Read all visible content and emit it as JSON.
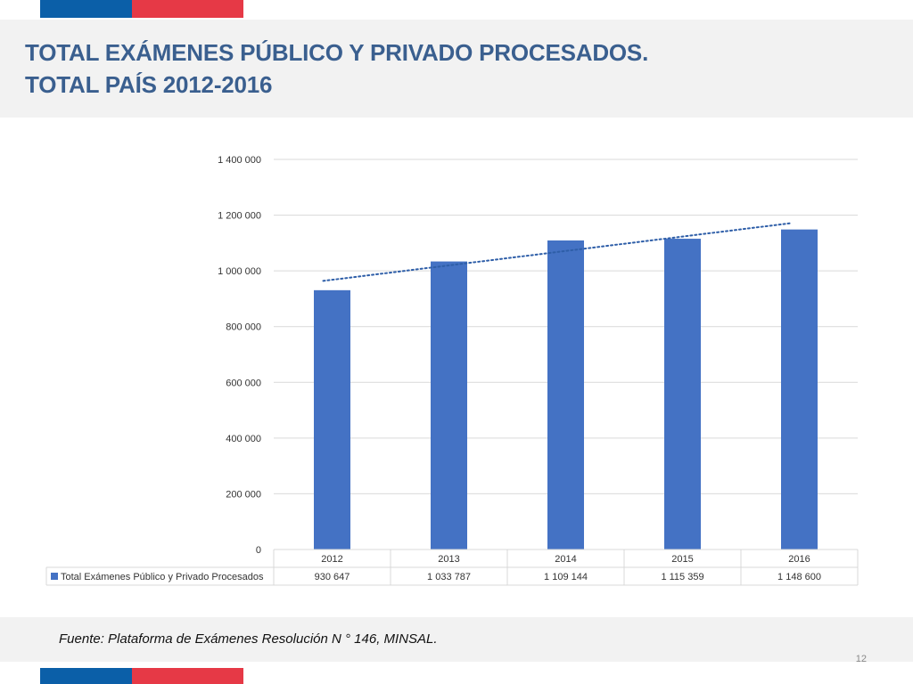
{
  "title": {
    "line1": "TOTAL EXÁMENES PÚBLICO Y PRIVADO PROCESADOS.",
    "line2": "TOTAL PAÍS 2012-2016"
  },
  "footer": {
    "source": "Fuente: Plataforma de Exámenes Resolución N ° 146, MINSAL.",
    "page_number": "12"
  },
  "colors": {
    "bar": "#4472c4",
    "trendline": "#2e5ea8",
    "title": "#3a5f8f",
    "flag_blue": "#0b5fa8",
    "flag_red": "#e63946"
  },
  "chart_data": {
    "type": "bar",
    "categories": [
      "2012",
      "2013",
      "2014",
      "2015",
      "2016"
    ],
    "series": [
      {
        "name": "Total Exámenes Público y Privado Procesados",
        "values": [
          930647,
          1033787,
          1109144,
          1115359,
          1148600
        ],
        "value_labels": [
          "930 647",
          "1 033 787",
          "1 109 144",
          "1 115 359",
          "1 148 600"
        ]
      }
    ],
    "ylim": [
      0,
      1400000
    ],
    "yticks": [
      0,
      200000,
      400000,
      600000,
      800000,
      1000000,
      1200000,
      1400000
    ],
    "ytick_labels": [
      "0",
      "200 000",
      "400 000",
      "600 000",
      "800 000",
      "1 000 000",
      "1 200 000",
      "1 400 000"
    ],
    "trendline": "linear-dotted",
    "grid": true,
    "legend": "data-table-below"
  }
}
